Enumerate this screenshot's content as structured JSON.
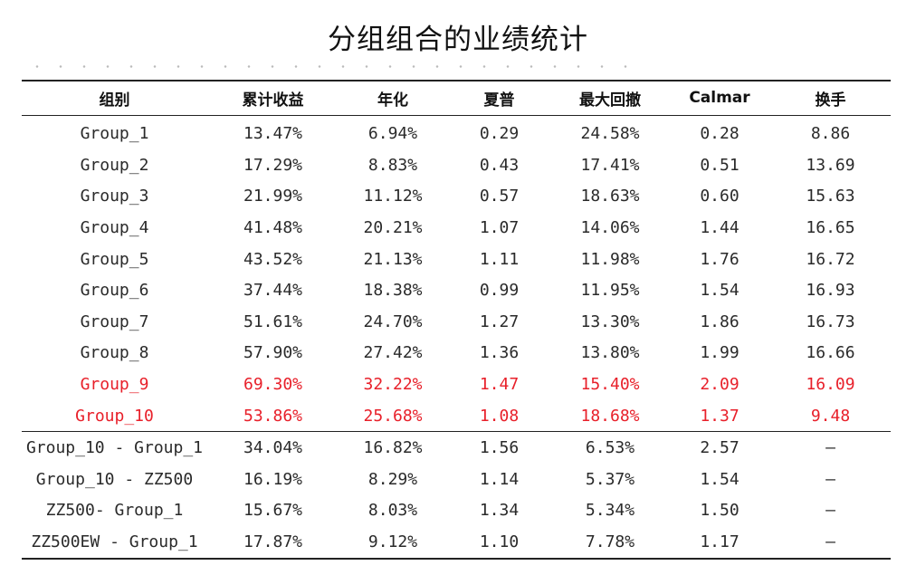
{
  "title": "分组组合的业绩统计",
  "table": {
    "headers": [
      "组别",
      "累计收益",
      "年化",
      "夏普",
      "最大回撤",
      "Calmar",
      "换手"
    ],
    "group_rows": [
      {
        "cells": [
          "Group_1",
          "13.47%",
          "6.94%",
          "0.29",
          "24.58%",
          "0.28",
          "8.86"
        ],
        "highlight": false
      },
      {
        "cells": [
          "Group_2",
          "17.29%",
          "8.83%",
          "0.43",
          "17.41%",
          "0.51",
          "13.69"
        ],
        "highlight": false
      },
      {
        "cells": [
          "Group_3",
          "21.99%",
          "11.12%",
          "0.57",
          "18.63%",
          "0.60",
          "15.63"
        ],
        "highlight": false
      },
      {
        "cells": [
          "Group_4",
          "41.48%",
          "20.21%",
          "1.07",
          "14.06%",
          "1.44",
          "16.65"
        ],
        "highlight": false
      },
      {
        "cells": [
          "Group_5",
          "43.52%",
          "21.13%",
          "1.11",
          "11.98%",
          "1.76",
          "16.72"
        ],
        "highlight": false
      },
      {
        "cells": [
          "Group_6",
          "37.44%",
          "18.38%",
          "0.99",
          "11.95%",
          "1.54",
          "16.93"
        ],
        "highlight": false
      },
      {
        "cells": [
          "Group_7",
          "51.61%",
          "24.70%",
          "1.27",
          "13.30%",
          "1.86",
          "16.73"
        ],
        "highlight": false
      },
      {
        "cells": [
          "Group_8",
          "57.90%",
          "27.42%",
          "1.36",
          "13.80%",
          "1.99",
          "16.66"
        ],
        "highlight": false
      },
      {
        "cells": [
          "Group_9",
          "69.30%",
          "32.22%",
          "1.47",
          "15.40%",
          "2.09",
          "16.09"
        ],
        "highlight": true
      },
      {
        "cells": [
          "Group_10",
          "53.86%",
          "25.68%",
          "1.08",
          "18.68%",
          "1.37",
          "9.48"
        ],
        "highlight": true
      }
    ],
    "diff_rows": [
      {
        "cells": [
          "Group_10 - Group_1",
          "34.04%",
          "16.82%",
          "1.56",
          "6.53%",
          "2.57",
          "–"
        ],
        "highlight": false
      },
      {
        "cells": [
          "Group_10 - ZZ500",
          "16.19%",
          "8.29%",
          "1.14",
          "5.37%",
          "1.54",
          "–"
        ],
        "highlight": false
      },
      {
        "cells": [
          "ZZ500- Group_1",
          "15.67%",
          "8.03%",
          "1.34",
          "5.34%",
          "1.50",
          "–"
        ],
        "highlight": false
      },
      {
        "cells": [
          "ZZ500EW - Group_1",
          "17.87%",
          "9.12%",
          "1.10",
          "7.78%",
          "1.17",
          "–"
        ],
        "highlight": false
      }
    ]
  },
  "colors": {
    "highlight": "#e8202a",
    "text": "#2a2a2a",
    "rule": "#222222"
  }
}
